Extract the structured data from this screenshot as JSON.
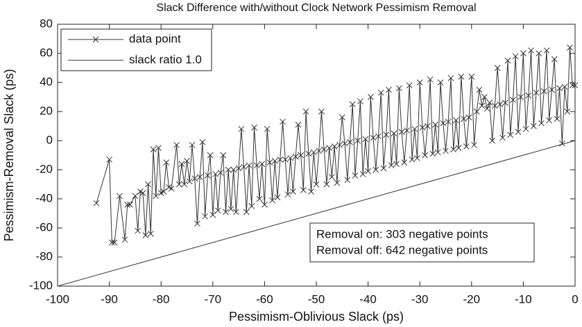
{
  "chart_data": {
    "type": "line",
    "title": "Slack Difference with/without Clock Network Pessimism Removal",
    "x_label": "Pessimism-Oblivious Slack (ps)",
    "y_label": "Pessimism-Removal Slack (ps)",
    "xlim": [
      -100,
      0
    ],
    "ylim": [
      -100,
      80
    ],
    "xticks": [
      -100,
      -90,
      -80,
      -70,
      -60,
      -50,
      -40,
      -30,
      -20,
      -10,
      0
    ],
    "yticks": [
      -100,
      -80,
      -60,
      -40,
      -20,
      0,
      20,
      40,
      60,
      80
    ],
    "legend": "upper left",
    "annotations": [
      "Removal on: 303 negative points",
      "Removal off: 642 negative points"
    ],
    "series": [
      {
        "name": "data point",
        "color": "#333333",
        "marker": "x",
        "x": [
          -92.5,
          -90,
          -89.5,
          -89,
          -88,
          -87,
          -86.5,
          -86,
          -85,
          -84.5,
          -84,
          -83.5,
          -83,
          -82.5,
          -82,
          -81.5,
          -81,
          -80.5,
          -80,
          -79.5,
          -79,
          -78.5,
          -78,
          -77,
          -76.5,
          -76,
          -75.5,
          -75,
          -74.5,
          -74,
          -73.5,
          -73,
          -72.5,
          -72,
          -71.5,
          -71,
          -70.5,
          -70,
          -69.5,
          -69,
          -68.5,
          -68,
          -67.5,
          -67,
          -66.5,
          -66,
          -65.5,
          -65,
          -64.5,
          -64,
          -63.5,
          -63,
          -62.5,
          -62,
          -61.5,
          -61,
          -60.5,
          -60,
          -59.5,
          -59,
          -58.5,
          -58,
          -57.5,
          -57,
          -56.5,
          -56,
          -55.5,
          -55,
          -54.5,
          -54,
          -53.5,
          -53,
          -52.5,
          -52,
          -51.5,
          -51,
          -50.5,
          -50,
          -49.5,
          -49,
          -48.5,
          -48,
          -47.5,
          -47,
          -46.5,
          -46,
          -45.5,
          -45,
          -44.5,
          -44,
          -43.5,
          -43,
          -42.5,
          -42,
          -41.5,
          -41,
          -40.5,
          -40,
          -39.5,
          -39,
          -38.5,
          -38,
          -37.5,
          -37,
          -36.5,
          -36,
          -35.5,
          -35,
          -34.5,
          -34,
          -33.5,
          -33,
          -32.5,
          -32,
          -31.5,
          -31,
          -30.5,
          -30,
          -29.5,
          -29,
          -28.5,
          -28,
          -27.5,
          -27,
          -26.5,
          -26,
          -25.5,
          -25,
          -24.5,
          -24,
          -23.5,
          -23,
          -22.5,
          -22,
          -21.5,
          -21,
          -20.5,
          -20,
          -19.5,
          -19,
          -18.5,
          -18,
          -17.5,
          -17,
          -16.5,
          -16,
          -15.5,
          -15,
          -14.5,
          -14,
          -13.5,
          -13,
          -12.5,
          -12,
          -11.5,
          -11,
          -10.5,
          -10,
          -9.5,
          -9,
          -8.5,
          -8,
          -7.5,
          -7,
          -6.5,
          -6,
          -5.5,
          -5,
          -4.5,
          -4,
          -3.5,
          -3,
          -2.5,
          -2,
          -1.5,
          -1,
          -0.5,
          0
        ],
        "values": [
          -43,
          -13,
          -70,
          -70,
          -38,
          -68,
          -44,
          -44,
          -38,
          -62,
          -35,
          -36,
          -65,
          -30,
          -64,
          -6,
          -38,
          -5,
          -36,
          -35,
          -15,
          -32,
          -33,
          -3,
          -30,
          -16,
          -30,
          -14,
          -28,
          -3,
          -26,
          -57,
          -25,
          -1,
          -52,
          -24,
          -10,
          -51,
          -23,
          -48,
          -22,
          -10,
          -49,
          -20,
          -47,
          -20,
          -49,
          -19,
          8,
          -18,
          -49,
          -17,
          -45,
          9,
          -17,
          -40,
          -16,
          -44,
          8,
          -15,
          -41,
          -14,
          -39,
          -13,
          13,
          -13,
          -37,
          -12,
          -35,
          -11,
          11,
          -10,
          -34,
          20,
          -9,
          -35,
          -8,
          -30,
          -7,
          20,
          -6,
          -30,
          -5,
          -25,
          -4,
          -29,
          -3,
          16,
          -2,
          -27,
          -1,
          25,
          -24,
          0,
          27,
          -23,
          1,
          -21,
          30,
          2,
          -20,
          3,
          33,
          -19,
          4,
          35,
          -17,
          5,
          -16,
          36,
          6,
          -15,
          7,
          38,
          -13,
          8,
          -12,
          40,
          9,
          -10,
          10,
          42,
          -9,
          11,
          -8,
          40,
          12,
          -7,
          13,
          43,
          -6,
          14,
          -5,
          44,
          15,
          -4,
          16,
          44,
          -3,
          20,
          35,
          24,
          30,
          22,
          26,
          0,
          24,
          50,
          25,
          2,
          26,
          55,
          4,
          28,
          58,
          6,
          30,
          60,
          8,
          31,
          62,
          10,
          33,
          60,
          12,
          34,
          62,
          14,
          35,
          56,
          15,
          36,
          -2,
          37,
          20,
          64,
          38,
          38
        ]
      },
      {
        "name": "slack ratio 1.0",
        "color": "#333333",
        "x": [
          -100,
          0
        ],
        "values": [
          -100,
          0
        ]
      }
    ]
  }
}
